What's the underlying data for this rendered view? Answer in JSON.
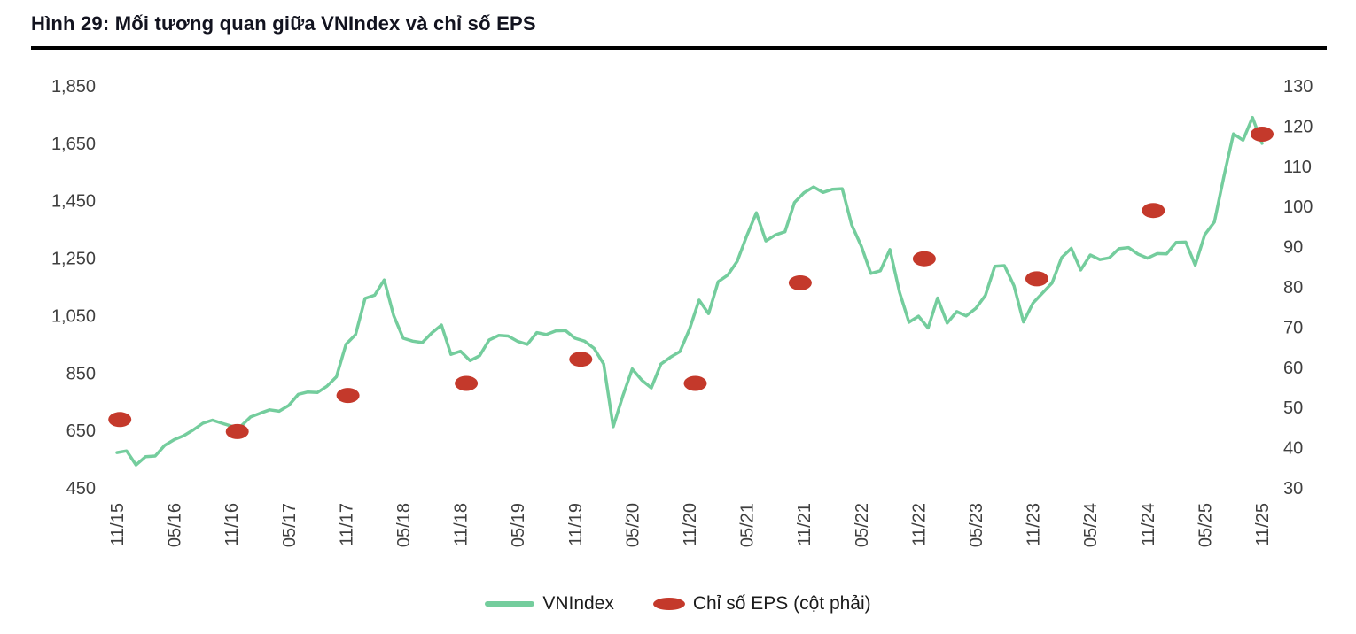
{
  "colors": {
    "line": "#74cd9d",
    "marker": "#c4392b",
    "axis_text": "#3f3f3f",
    "title_text": "#12131f",
    "rule": "#000000"
  },
  "chart_data": {
    "type": "line",
    "title": "Hình 29: Mối tương quan giữa VNIndex và chỉ số EPS",
    "x_tick_labels": [
      "11/15",
      "05/16",
      "11/16",
      "05/17",
      "11/17",
      "05/18",
      "11/18",
      "05/19",
      "11/19",
      "05/20",
      "11/20",
      "05/21",
      "11/21",
      "05/22",
      "11/22",
      "05/23",
      "11/23",
      "05/24",
      "11/24",
      "05/25",
      "11/25"
    ],
    "left_axis": {
      "min": 450,
      "max": 1850,
      "ticks": [
        1850,
        1650,
        1450,
        1250,
        1050,
        850,
        650,
        450
      ]
    },
    "right_axis": {
      "min": 30,
      "max": 130,
      "ticks": [
        130,
        120,
        110,
        100,
        90,
        80,
        70,
        60,
        50,
        40,
        30
      ]
    },
    "grid": false,
    "legend_position": "bottom-center",
    "series": [
      {
        "name": "VNIndex",
        "axis": "left",
        "type": "line",
        "start": "11/15",
        "interval": "monthly",
        "values": [
          573,
          579,
          530,
          559,
          561,
          598,
          618,
          632,
          652,
          675,
          686,
          675,
          665,
          665,
          697,
          710,
          722,
          717,
          737,
          776,
          784,
          782,
          804,
          837,
          950,
          984,
          1110,
          1121,
          1174,
          1050,
          971,
          961,
          956,
          990,
          1017,
          915,
          926,
          893,
          910,
          965,
          981,
          979,
          960,
          950,
          991,
          984,
          997,
          998,
          971,
          961,
          936,
          882,
          663,
          769,
          864,
          825,
          798,
          881,
          905,
          925,
          1003,
          1104,
          1057,
          1168,
          1191,
          1239,
          1328,
          1408,
          1310,
          1331,
          1342,
          1444,
          1478,
          1498,
          1479,
          1490,
          1492,
          1366,
          1292,
          1197,
          1206,
          1280,
          1132,
          1027,
          1048,
          1007,
          1111,
          1024,
          1064,
          1049,
          1075,
          1120,
          1222,
          1224,
          1154,
          1028,
          1094,
          1129,
          1164,
          1252,
          1284,
          1209,
          1261,
          1245,
          1251,
          1283,
          1287,
          1264,
          1250,
          1266,
          1265,
          1305,
          1306,
          1226,
          1332,
          1376,
          1534,
          1683,
          1661,
          1740,
          1650
        ]
      },
      {
        "name": "Chỉ số EPS (cột phải)",
        "axis": "right",
        "type": "markers",
        "points": [
          {
            "x": "11/15",
            "month_index": 0.3,
            "value": 47
          },
          {
            "x": "11/16",
            "month_index": 12.6,
            "value": 44
          },
          {
            "x": "11/17",
            "month_index": 24.2,
            "value": 53
          },
          {
            "x": "11/18",
            "month_index": 36.6,
            "value": 56
          },
          {
            "x": "11/19",
            "month_index": 48.6,
            "value": 62
          },
          {
            "x": "11/20",
            "month_index": 60.6,
            "value": 56
          },
          {
            "x": "11/21",
            "month_index": 71.6,
            "value": 81
          },
          {
            "x": "11/22",
            "month_index": 84.6,
            "value": 87
          },
          {
            "x": "11/23",
            "month_index": 96.4,
            "value": 82
          },
          {
            "x": "11/24",
            "month_index": 108.6,
            "value": 99
          },
          {
            "x": "11/25",
            "month_index": 120,
            "value": 118
          }
        ]
      }
    ],
    "legend": [
      {
        "label": "VNIndex",
        "swatch": "line"
      },
      {
        "label": "Chỉ số EPS (cột phải)",
        "swatch": "ellipse"
      }
    ]
  }
}
